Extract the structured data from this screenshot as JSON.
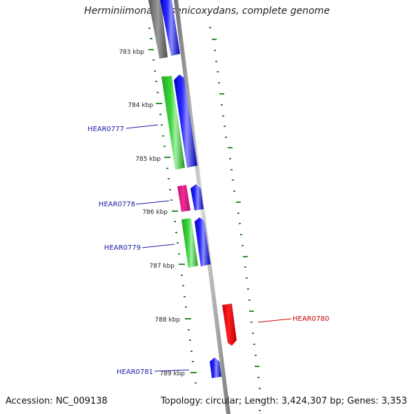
{
  "title": "Herminiimonas arsenicoxydans, complete genome",
  "footer": {
    "accession": "Accession: NC_009138",
    "stats": "Topology: circular; Length: 3,424,307 bp; Genes: 3,353"
  },
  "colors": {
    "backbone": "#8c8c8c",
    "tick": "#2e8b2e",
    "gene_label_blue": "#1a1aa8",
    "gene_label_red": "#cc0000",
    "cds_blue": "#1010ee",
    "cds_green": "#33cc33",
    "cds_magenta": "#e0208a",
    "cds_red": "#ee1111",
    "cds_grey": "#707070"
  },
  "kbp_labels": [
    "783 kbp",
    "784 kbp",
    "785 kbp",
    "786 kbp",
    "787 kbp",
    "788 kbp",
    "789 kbp"
  ],
  "gene_labels": [
    {
      "name": "HEAR0777",
      "color": "blue"
    },
    {
      "name": "HEAR0778",
      "color": "blue"
    },
    {
      "name": "HEAR0779",
      "color": "blue"
    },
    {
      "name": "HEAR0780",
      "color": "red"
    },
    {
      "name": "HEAR0781",
      "color": "blue"
    }
  ]
}
